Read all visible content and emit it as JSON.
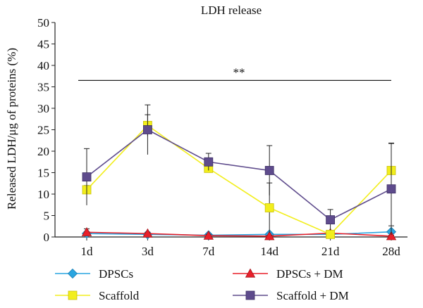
{
  "chart_data": {
    "type": "line",
    "title": "LDH release",
    "xlabel": "",
    "ylabel": "Released LDH/μg of proteins (%)",
    "categories": [
      "1d",
      "3d",
      "7d",
      "14d",
      "21d",
      "28d"
    ],
    "ylim": [
      0,
      50
    ],
    "yticks": [
      0,
      5,
      10,
      15,
      20,
      25,
      30,
      35,
      40,
      45,
      50
    ],
    "grid": false,
    "legend_position": "bottom",
    "significance": {
      "label": "**",
      "y": 36.5,
      "from": "1d",
      "to": "28d"
    },
    "series": [
      {
        "name": "DPSCs",
        "marker": "diamond",
        "color": "#2aa5e0",
        "values": [
          0.8,
          0.6,
          0.4,
          0.6,
          0.6,
          1.2
        ],
        "errors": [
          0.3,
          0.3,
          0.2,
          0.3,
          0.2,
          1.4
        ]
      },
      {
        "name": "DPSCs + DM",
        "marker": "triangle",
        "color": "#e8202a",
        "values": [
          1.1,
          0.8,
          0.3,
          0.2,
          0.9,
          0.2
        ],
        "errors": [
          0.8,
          0.3,
          0.3,
          0.2,
          0.3,
          0.2
        ]
      },
      {
        "name": "Scaffold",
        "marker": "square",
        "color": "#f2ee1c",
        "values": [
          11.0,
          26.0,
          16.0,
          6.8,
          0.6,
          15.5
        ],
        "errors": [
          1.0,
          2.5,
          0.6,
          5.8,
          0.5,
          6.3
        ]
      },
      {
        "name": "Scaffold + DM",
        "marker": "square",
        "color": "#5e4b8c",
        "values": [
          14.0,
          25.0,
          17.5,
          15.5,
          4.0,
          11.2
        ],
        "errors": [
          6.6,
          5.8,
          2.0,
          5.8,
          2.4,
          10.7
        ]
      }
    ]
  }
}
